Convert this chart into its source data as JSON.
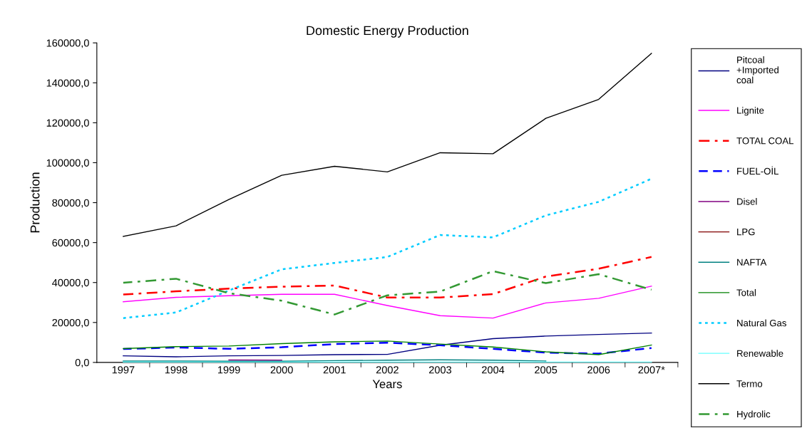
{
  "chart_data": {
    "type": "line",
    "title": "Domestic Energy Production",
    "xlabel": "Years",
    "ylabel": "Production",
    "categories": [
      "1997",
      "1998",
      "1999",
      "2000",
      "2001",
      "2002",
      "2003",
      "2004",
      "2005",
      "2006",
      "2007*"
    ],
    "ylim": [
      0,
      160000
    ],
    "yticks": [
      {
        "value": 0,
        "label": "0,0"
      },
      {
        "value": 20000,
        "label": "20000,0"
      },
      {
        "value": 40000,
        "label": "40000,0"
      },
      {
        "value": 60000,
        "label": "60000,0"
      },
      {
        "value": 80000,
        "label": "80000,0"
      },
      {
        "value": 100000,
        "label": "100000,0"
      },
      {
        "value": 120000,
        "label": "120000,0"
      },
      {
        "value": 140000,
        "label": "140000,0"
      },
      {
        "value": 160000,
        "label": "160000,0"
      }
    ],
    "grid": false,
    "legend": "right",
    "series": [
      {
        "name": "Pitcoal +Imported coal",
        "color": "#000080",
        "line_style": "solid",
        "values": [
          3300,
          2800,
          3300,
          3500,
          3900,
          4000,
          8600,
          11900,
          13200,
          14000,
          14700
        ]
      },
      {
        "name": "Lignite",
        "color": "#ff00ff",
        "line_style": "solid",
        "values": [
          30400,
          32600,
          33400,
          34100,
          34100,
          28500,
          23400,
          22200,
          29800,
          32100,
          38200
        ]
      },
      {
        "name": "TOTAL COAL",
        "color": "#ff0000",
        "line_style": "dashdot",
        "values": [
          34000,
          35600,
          37000,
          37900,
          38500,
          32500,
          32500,
          34200,
          43000,
          46900,
          52800
        ]
      },
      {
        "name": "FUEL-OİL",
        "color": "#0000ff",
        "line_style": "dashed",
        "values": [
          6700,
          7500,
          6800,
          7600,
          9200,
          9900,
          8600,
          6800,
          4900,
          4400,
          7200
        ]
      },
      {
        "name": "Disel",
        "color": "#800080",
        "line_style": "solid",
        "values": [
          null,
          null,
          1200,
          1100,
          null,
          null,
          null,
          null,
          null,
          null,
          null
        ]
      },
      {
        "name": "LPG",
        "color": "#800000",
        "line_style": "solid",
        "values": [
          null,
          null,
          null,
          null,
          null,
          null,
          null,
          null,
          null,
          null,
          null
        ]
      },
      {
        "name": "NAFTA",
        "color": "#008080",
        "line_style": "solid",
        "values": [
          700,
          700,
          600,
          600,
          900,
          1100,
          1300,
          1100,
          700,
          null,
          null
        ]
      },
      {
        "name": "Total",
        "color": "#008000",
        "line_style": "solid",
        "values": [
          6900,
          7900,
          8200,
          9400,
          10300,
          10700,
          9200,
          7700,
          5300,
          3900,
          8700
        ]
      },
      {
        "name": "Natural Gas",
        "color": "#00ccff",
        "line_style": "dotted",
        "values": [
          22200,
          25000,
          36000,
          46600,
          49800,
          52800,
          63800,
          62600,
          73600,
          80400,
          92000
        ]
      },
      {
        "name": "Renewable",
        "color": "#66ffff",
        "line_style": "solid",
        "values": [
          200,
          200,
          200,
          200,
          200,
          200,
          200,
          200,
          200,
          200,
          200
        ]
      },
      {
        "name": "Termo",
        "color": "#000000",
        "line_style": "solid",
        "values": [
          63100,
          68400,
          81600,
          93700,
          98200,
          95400,
          105000,
          104500,
          122200,
          131700,
          154700
        ]
      },
      {
        "name": "Hydrolic",
        "color": "#339933",
        "line_style": "dashdot",
        "values": [
          39900,
          41900,
          34700,
          30900,
          24000,
          33600,
          35500,
          45700,
          39700,
          44200,
          36400
        ]
      }
    ]
  }
}
